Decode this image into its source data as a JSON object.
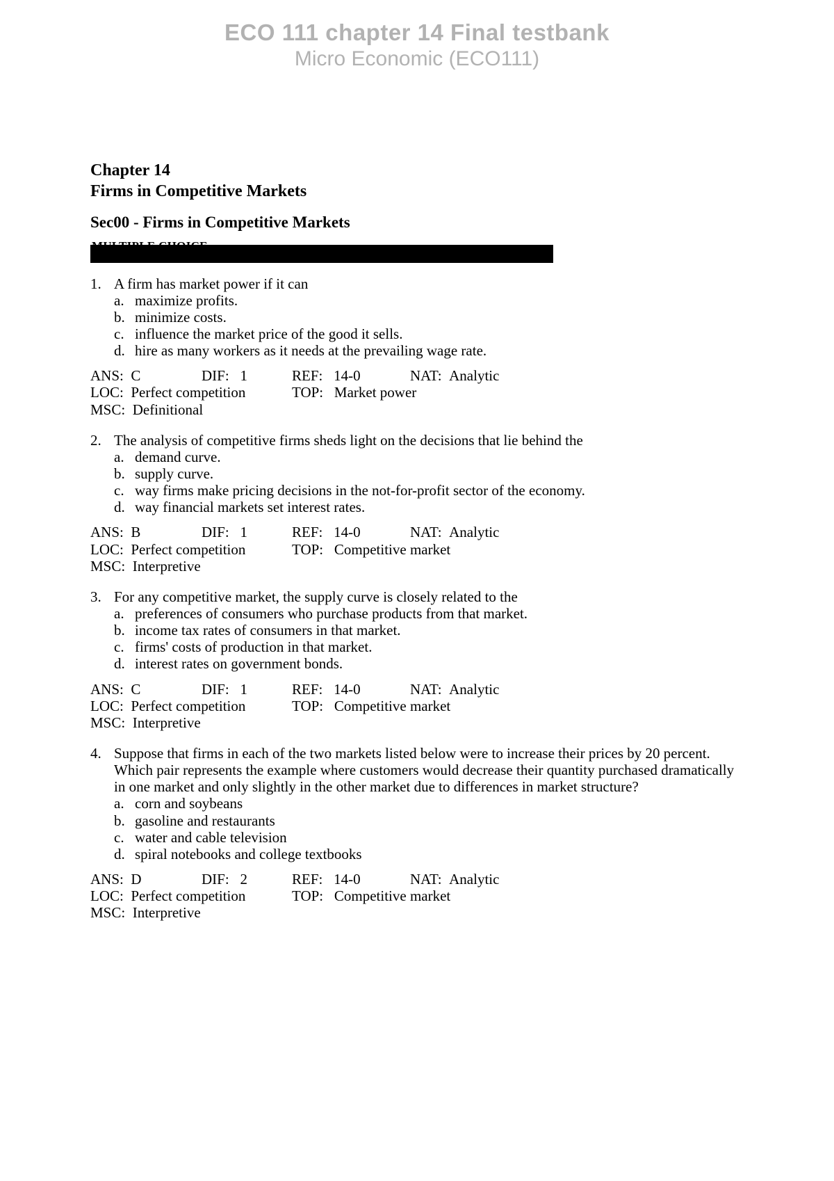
{
  "header": {
    "title": "ECO 111 chapter 14 Final testbank",
    "subtitle": "Micro Economic (ECO111)"
  },
  "chapter": {
    "line1": "Chapter 14",
    "line2": "Firms in Competitive Markets",
    "section": "Sec00 - Firms in Competitive Markets",
    "bar_text": "MULTIPLE CHOICE"
  },
  "questions": [
    {
      "num": "1.",
      "text": "A firm has market power if it can",
      "options": [
        {
          "letter": "a.",
          "text": "maximize profits."
        },
        {
          "letter": "b.",
          "text": "minimize costs."
        },
        {
          "letter": "c.",
          "text": "influence the market price of the good it sells."
        },
        {
          "letter": "d.",
          "text": "hire as many workers as it needs at the prevailing wage rate."
        }
      ],
      "meta": {
        "ans": "C",
        "dif": "1",
        "ref": "14-0",
        "nat": "Analytic",
        "loc": "Perfect competition",
        "top": "Market power",
        "msc": "Definitional"
      }
    },
    {
      "num": "2.",
      "text": "The analysis of competitive firms sheds light on the decisions that lie behind the",
      "options": [
        {
          "letter": "a.",
          "text": "demand curve."
        },
        {
          "letter": "b.",
          "text": "supply curve."
        },
        {
          "letter": "c.",
          "text": "way firms make pricing decisions in the not-for-profit sector of the economy."
        },
        {
          "letter": "d.",
          "text": "way financial markets set interest rates."
        }
      ],
      "meta": {
        "ans": "B",
        "dif": "1",
        "ref": "14-0",
        "nat": "Analytic",
        "loc": "Perfect competition",
        "top": "Competitive market",
        "msc": "Interpretive"
      }
    },
    {
      "num": "3.",
      "text": "For any competitive market, the supply curve is closely related to the",
      "options": [
        {
          "letter": "a.",
          "text": "preferences of consumers who purchase products from that market."
        },
        {
          "letter": "b.",
          "text": "income tax rates of consumers in that market."
        },
        {
          "letter": "c.",
          "text": "firms' costs of production in that market."
        },
        {
          "letter": "d.",
          "text": "interest rates on government bonds."
        }
      ],
      "meta": {
        "ans": "C",
        "dif": "1",
        "ref": "14-0",
        "nat": "Analytic",
        "loc": "Perfect competition",
        "top": "Competitive market",
        "msc": "Interpretive"
      }
    },
    {
      "num": "4.",
      "text": "Suppose that firms in each of the two markets listed below were to increase their prices by 20 percent.  Which pair represents the example where customers would decrease their quantity purchased dramatically in one market and only slightly in the other market due to differences in market structure?",
      "options": [
        {
          "letter": "a.",
          "text": "corn and soybeans"
        },
        {
          "letter": "b.",
          "text": "gasoline and restaurants"
        },
        {
          "letter": "c.",
          "text": "water and cable television"
        },
        {
          "letter": "d.",
          "text": "spiral notebooks and college textbooks"
        }
      ],
      "meta": {
        "ans": "D",
        "dif": "2",
        "ref": "14-0",
        "nat": "Analytic",
        "loc": "Perfect competition",
        "top": "Competitive market",
        "msc": "Interpretive"
      }
    }
  ],
  "labels": {
    "ans": "ANS:  ",
    "dif": "DIF:   ",
    "ref": "REF:   ",
    "nat": "NAT:  ",
    "loc": "LOC:  ",
    "top": "TOP:   ",
    "msc": "MSC:  "
  }
}
